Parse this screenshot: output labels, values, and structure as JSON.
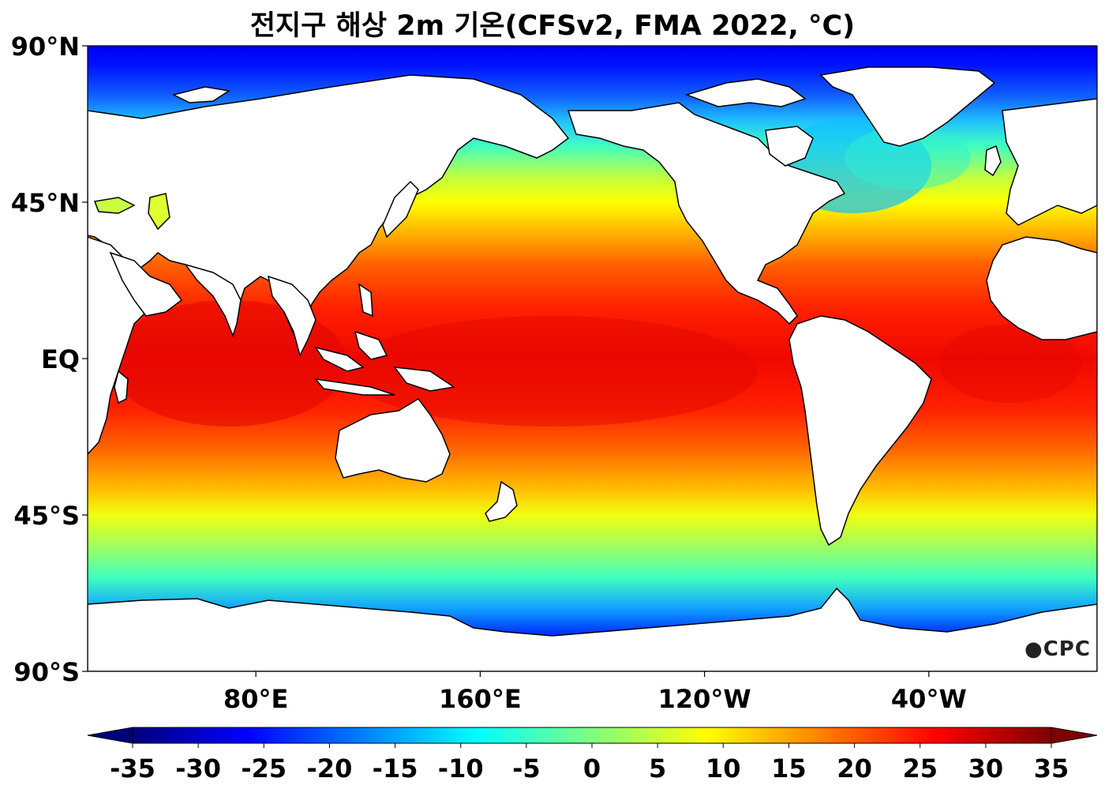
{
  "title": "전지구 해상 2m 기온(CFSv2, FMA 2022, °C)",
  "logo_text": "CPC",
  "map": {
    "projection": "equirectangular",
    "center_longitude": 200,
    "lat_ticks": [
      {
        "lat": 90,
        "label": "90°N"
      },
      {
        "lat": 45,
        "label": "45°N"
      },
      {
        "lat": 0,
        "label": "EQ"
      },
      {
        "lat": -45,
        "label": "45°S"
      },
      {
        "lat": -90,
        "label": "90°S"
      }
    ],
    "lon_ticks": [
      {
        "lon": 80,
        "label": "80°E"
      },
      {
        "lon": 160,
        "label": "160°E"
      },
      {
        "lon": 240,
        "label": "120°W"
      },
      {
        "lon": 320,
        "label": "40°W"
      }
    ],
    "land_color": "#ffffff",
    "coast_color": "#000000"
  },
  "colorbar": {
    "min": -35,
    "max": 35,
    "tick_labels": [
      "-35",
      "-30",
      "-25",
      "-20",
      "-15",
      "-10",
      "-5",
      "0",
      "5",
      "10",
      "15",
      "20",
      "25",
      "30",
      "35"
    ],
    "extend": "both",
    "colormap": [
      "#00007f",
      "#0000ff",
      "#007fff",
      "#00ffff",
      "#7fff7f",
      "#ffff00",
      "#ff7f00",
      "#ff0000",
      "#7f0000"
    ]
  }
}
